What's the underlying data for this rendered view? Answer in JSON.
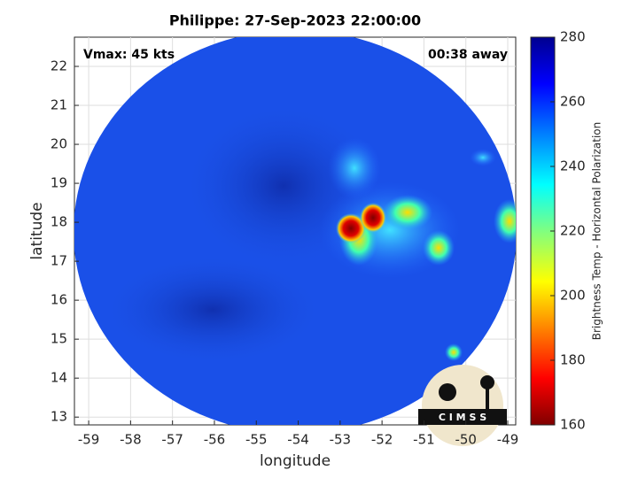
{
  "chart_data": {
    "type": "map",
    "title": "Philippe: 27-Sep-2023 22:00:00",
    "x_label": "longitude",
    "y_label": "latitude",
    "annotations": [
      "Vmax: 45 kts",
      "00:38 away"
    ],
    "xlim": [
      -59.34,
      -48.81
    ],
    "xticks": [
      -59,
      -58,
      -57,
      -56,
      -55,
      -54,
      -53,
      -52,
      -51,
      -50,
      -49
    ],
    "ylim": [
      12.8,
      22.75
    ],
    "yticks": [
      13,
      14,
      15,
      16,
      17,
      18,
      19,
      20,
      21,
      22
    ],
    "grid": true,
    "colorbar": {
      "label": "Brightness Temp - Horizontal Polarization",
      "lim": [
        160,
        280
      ],
      "ticks": [
        160,
        180,
        200,
        220,
        240,
        260,
        280
      ]
    },
    "logo": "C I M S S"
  }
}
